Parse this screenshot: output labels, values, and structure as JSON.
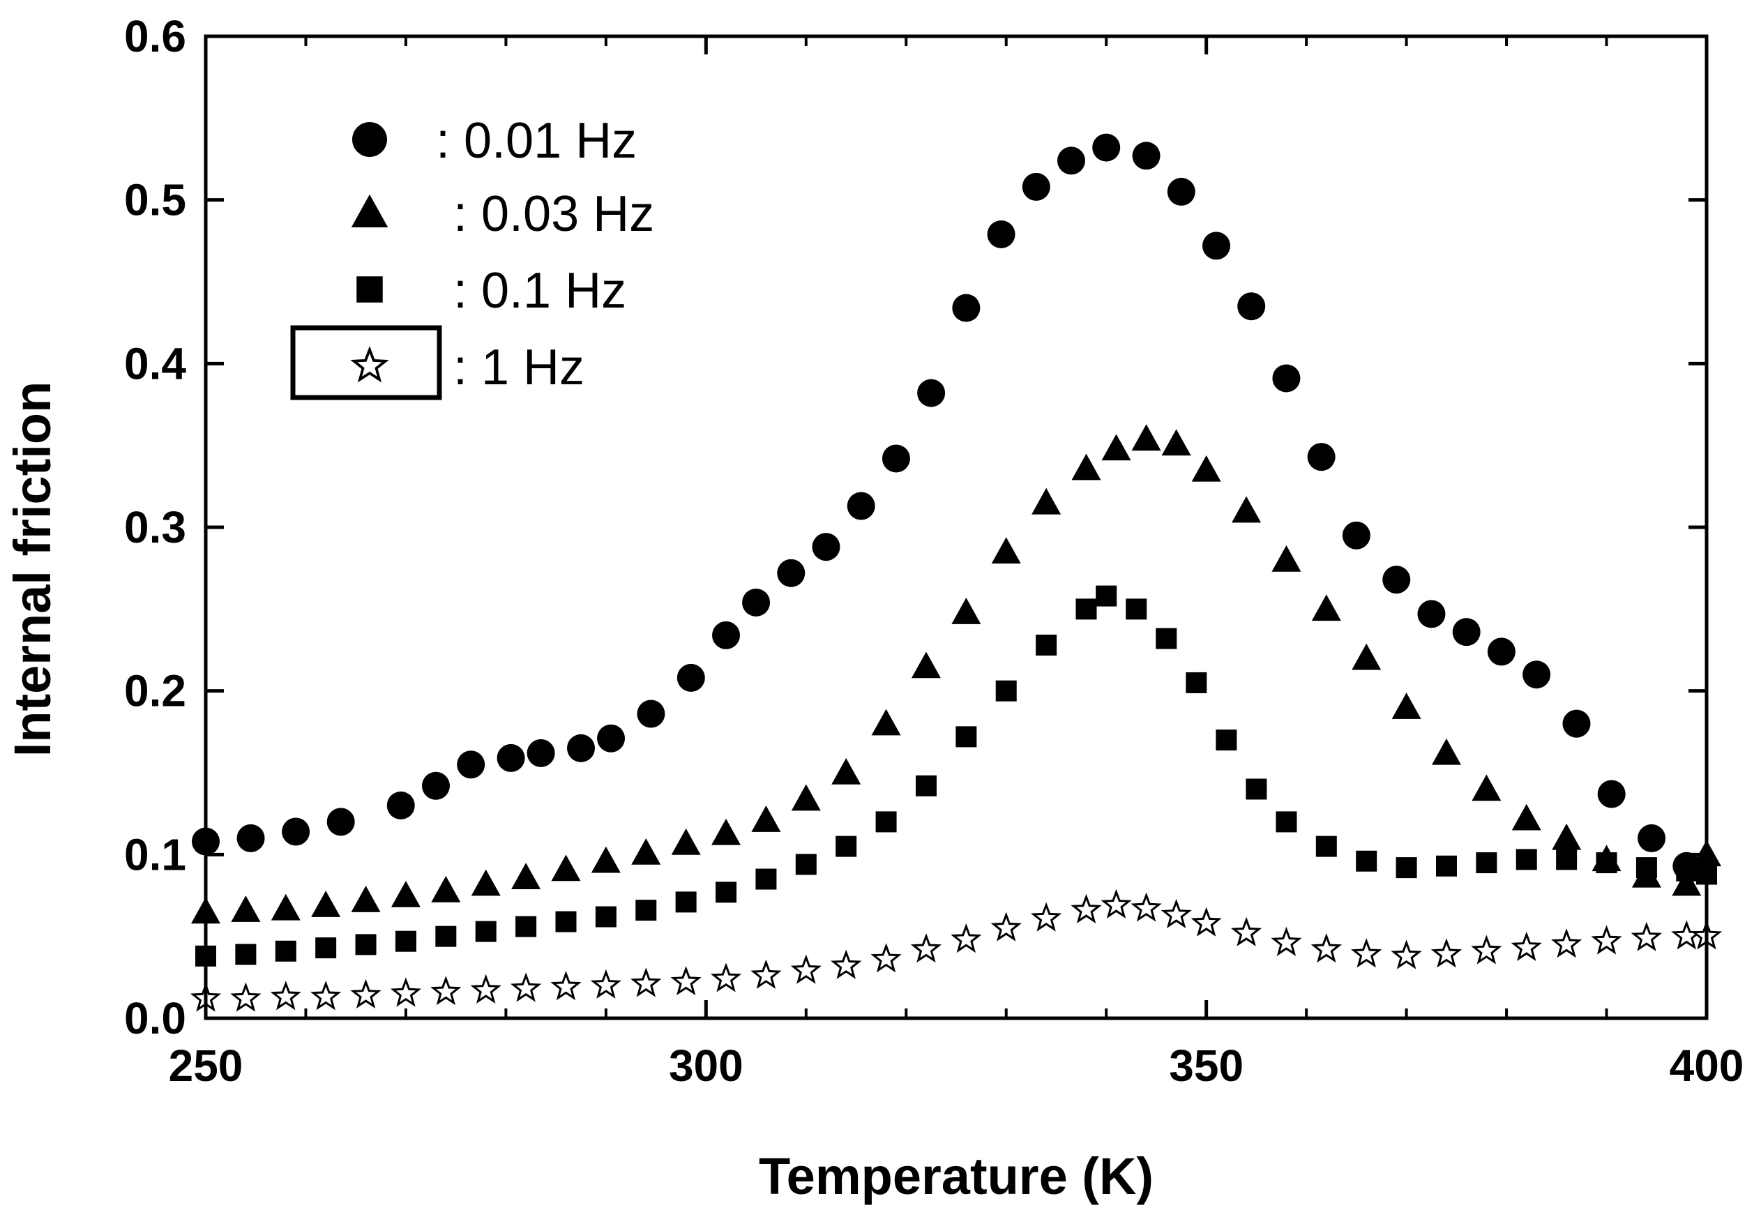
{
  "chart_data": {
    "type": "scatter",
    "title": "",
    "xlabel": "Temperature (K)",
    "ylabel": "Internal friction",
    "xlim": [
      250,
      400
    ],
    "ylim": [
      0,
      0.6
    ],
    "xticks": [
      250,
      300,
      350,
      400
    ],
    "xtick_labels": [
      "250",
      "300",
      "350",
      "400"
    ],
    "yticks": [
      0,
      0.1,
      0.2,
      0.3,
      0.4,
      0.5,
      0.6
    ],
    "ytick_labels": [
      "0.0",
      "0.1",
      "0.2",
      "0.3",
      "0.4",
      "0.5",
      "0.6"
    ],
    "grid": false,
    "legend_position": "top-left",
    "series": [
      {
        "name": ": 0.01 Hz",
        "marker": "circle",
        "x": [
          250,
          254.5,
          259,
          263.5,
          269.5,
          273,
          276.5,
          280.5,
          283.5,
          287.5,
          290.5,
          294.5,
          298.5,
          302,
          305,
          308.5,
          312,
          315.5,
          319,
          322.5,
          326,
          329.5,
          333,
          336.5,
          340,
          344,
          347.5,
          351,
          354.5,
          358,
          361.5,
          365,
          369,
          372.5,
          376,
          379.5,
          383,
          387,
          390.5,
          394.5,
          398
        ],
        "y": [
          0.108,
          0.11,
          0.114,
          0.12,
          0.13,
          0.142,
          0.155,
          0.159,
          0.162,
          0.165,
          0.171,
          0.186,
          0.208,
          0.234,
          0.254,
          0.272,
          0.288,
          0.313,
          0.342,
          0.382,
          0.434,
          0.479,
          0.508,
          0.524,
          0.532,
          0.527,
          0.505,
          0.472,
          0.435,
          0.391,
          0.343,
          0.295,
          0.268,
          0.247,
          0.236,
          0.224,
          0.21,
          0.18,
          0.137,
          0.11,
          0.093
        ]
      },
      {
        "name": ": 0.03 Hz",
        "marker": "triangle",
        "x": [
          250,
          254,
          258,
          262,
          266,
          270,
          274,
          278,
          282,
          286,
          290,
          294,
          298,
          302,
          306,
          310,
          314,
          318,
          322,
          326,
          330,
          334,
          338,
          341,
          344,
          347,
          350,
          354,
          358,
          362,
          366,
          370,
          374,
          378,
          382,
          386,
          390,
          394,
          398,
          400
        ],
        "y": [
          0.065,
          0.066,
          0.067,
          0.069,
          0.072,
          0.075,
          0.078,
          0.082,
          0.086,
          0.091,
          0.096,
          0.101,
          0.107,
          0.113,
          0.121,
          0.134,
          0.15,
          0.18,
          0.215,
          0.248,
          0.285,
          0.315,
          0.336,
          0.348,
          0.354,
          0.351,
          0.335,
          0.31,
          0.28,
          0.25,
          0.22,
          0.19,
          0.162,
          0.14,
          0.122,
          0.11,
          0.097,
          0.087,
          0.082,
          0.1
        ]
      },
      {
        "name": ": 0.1 Hz",
        "marker": "square",
        "x": [
          250,
          254,
          258,
          262,
          266,
          270,
          274,
          278,
          282,
          286,
          290,
          294,
          298,
          302,
          306,
          310,
          314,
          318,
          322,
          326,
          330,
          334,
          338,
          340,
          343,
          346,
          349,
          352,
          355,
          358,
          362,
          366,
          370,
          374,
          378,
          382,
          386,
          390,
          394,
          398,
          400
        ],
        "y": [
          0.038,
          0.039,
          0.041,
          0.043,
          0.045,
          0.047,
          0.05,
          0.053,
          0.056,
          0.059,
          0.062,
          0.066,
          0.071,
          0.077,
          0.085,
          0.094,
          0.105,
          0.12,
          0.142,
          0.172,
          0.2,
          0.228,
          0.25,
          0.258,
          0.25,
          0.232,
          0.205,
          0.17,
          0.14,
          0.12,
          0.105,
          0.096,
          0.092,
          0.093,
          0.095,
          0.097,
          0.097,
          0.095,
          0.092,
          0.09,
          0.088
        ]
      },
      {
        "name": ": 1 Hz",
        "marker": "star",
        "x": [
          250,
          254,
          258,
          262,
          266,
          270,
          274,
          278,
          282,
          286,
          290,
          294,
          298,
          302,
          306,
          310,
          314,
          318,
          322,
          326,
          330,
          334,
          338,
          341,
          344,
          347,
          350,
          354,
          358,
          362,
          366,
          370,
          374,
          378,
          382,
          386,
          390,
          394,
          398,
          400
        ],
        "y": [
          0.012,
          0.012,
          0.013,
          0.013,
          0.014,
          0.015,
          0.016,
          0.017,
          0.018,
          0.019,
          0.02,
          0.021,
          0.022,
          0.024,
          0.026,
          0.029,
          0.032,
          0.036,
          0.042,
          0.048,
          0.055,
          0.061,
          0.066,
          0.069,
          0.067,
          0.063,
          0.058,
          0.052,
          0.046,
          0.042,
          0.039,
          0.038,
          0.039,
          0.041,
          0.043,
          0.045,
          0.047,
          0.049,
          0.05,
          0.05
        ]
      }
    ]
  }
}
